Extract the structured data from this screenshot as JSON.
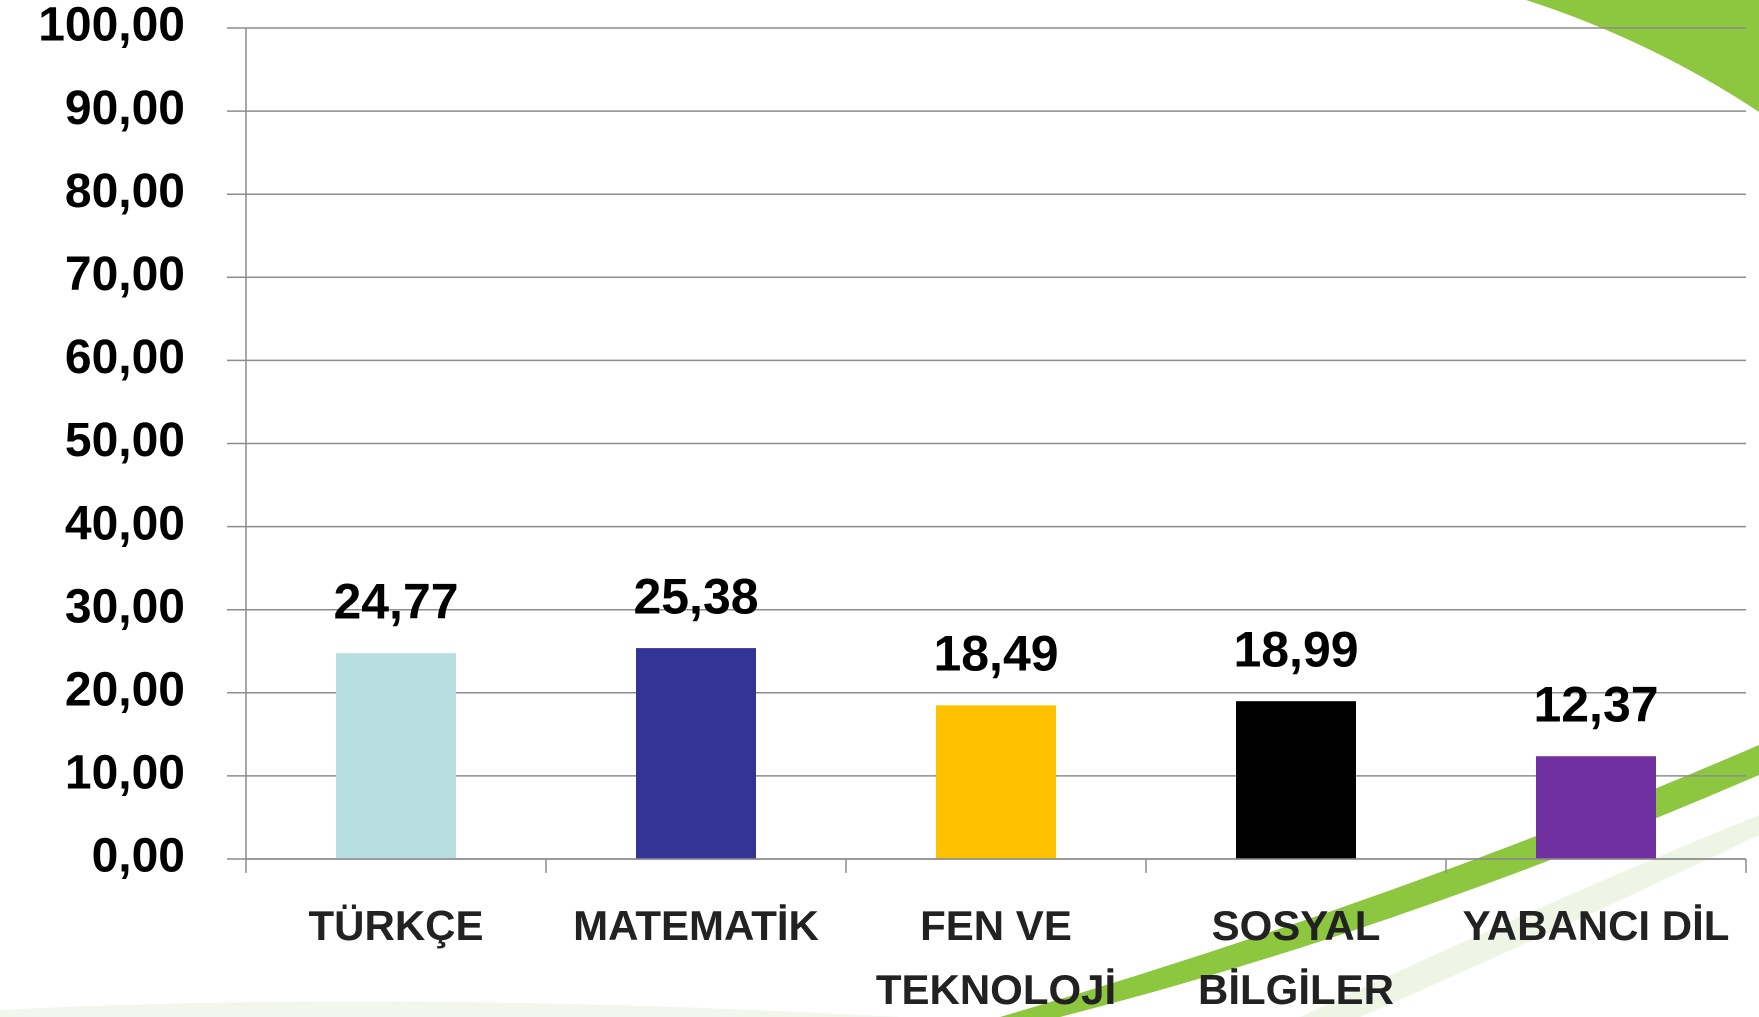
{
  "chart_data": {
    "type": "bar",
    "categories": [
      "TÜRKÇE",
      "MATEMATİK",
      "FEN VE\nTEKNOLOJİ",
      "SOSYAL\nBİLGİLER",
      "YABANCI DİL"
    ],
    "values": [
      24.77,
      25.38,
      18.49,
      18.99,
      12.37
    ],
    "value_labels": [
      "24,77",
      "25,38",
      "18,49",
      "18,99",
      "12,37"
    ],
    "colors": [
      "#b7dfe2",
      "#343396",
      "#ffc000",
      "#000000",
      "#7030a0"
    ],
    "ylim": [
      0,
      100
    ],
    "yticks": [
      {
        "value": 0,
        "label": "0,00"
      },
      {
        "value": 10,
        "label": "10,00"
      },
      {
        "value": 20,
        "label": "20,00"
      },
      {
        "value": 30,
        "label": "30,00"
      },
      {
        "value": 40,
        "label": "40,00"
      },
      {
        "value": 50,
        "label": "50,00"
      },
      {
        "value": 60,
        "label": "60,00"
      },
      {
        "value": 70,
        "label": "70,00"
      },
      {
        "value": 80,
        "label": "80,00"
      },
      {
        "value": 90,
        "label": "90,00"
      },
      {
        "value": 100,
        "label": "100,00"
      }
    ],
    "grid": true
  }
}
